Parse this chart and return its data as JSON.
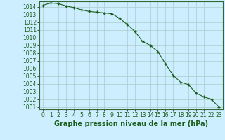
{
  "hours": [
    0,
    1,
    2,
    3,
    4,
    5,
    6,
    7,
    8,
    9,
    10,
    11,
    12,
    13,
    14,
    15,
    16,
    17,
    18,
    19,
    20,
    21,
    22,
    23
  ],
  "pressures": [
    1014.2,
    1014.5,
    1014.4,
    1014.1,
    1013.9,
    1013.6,
    1013.4,
    1013.3,
    1013.2,
    1013.1,
    1012.5,
    1011.7,
    1010.8,
    1009.5,
    1009.0,
    1008.2,
    1006.6,
    1005.1,
    1004.2,
    1003.9,
    1002.8,
    1002.3,
    1002.0,
    1001.0
  ],
  "ylim_min": 1000.7,
  "ylim_max": 1014.7,
  "yticks": [
    1001,
    1002,
    1003,
    1004,
    1005,
    1006,
    1007,
    1008,
    1009,
    1010,
    1011,
    1012,
    1013,
    1014
  ],
  "xticks": [
    0,
    1,
    2,
    3,
    4,
    5,
    6,
    7,
    8,
    9,
    10,
    11,
    12,
    13,
    14,
    15,
    16,
    17,
    18,
    19,
    20,
    21,
    22,
    23
  ],
  "line_color": "#1a5c1a",
  "marker": "+",
  "marker_size": 3.5,
  "marker_linewidth": 1.0,
  "line_width": 0.8,
  "bg_color": "#cceeff",
  "grid_color": "#aacccc",
  "xlabel": "Graphe pression niveau de la mer (hPa)",
  "xlabel_color": "#1a5c1a",
  "xlabel_fontsize": 7.0,
  "tick_fontsize": 5.5,
  "tick_color": "#1a5c1a",
  "spine_color": "#336633"
}
